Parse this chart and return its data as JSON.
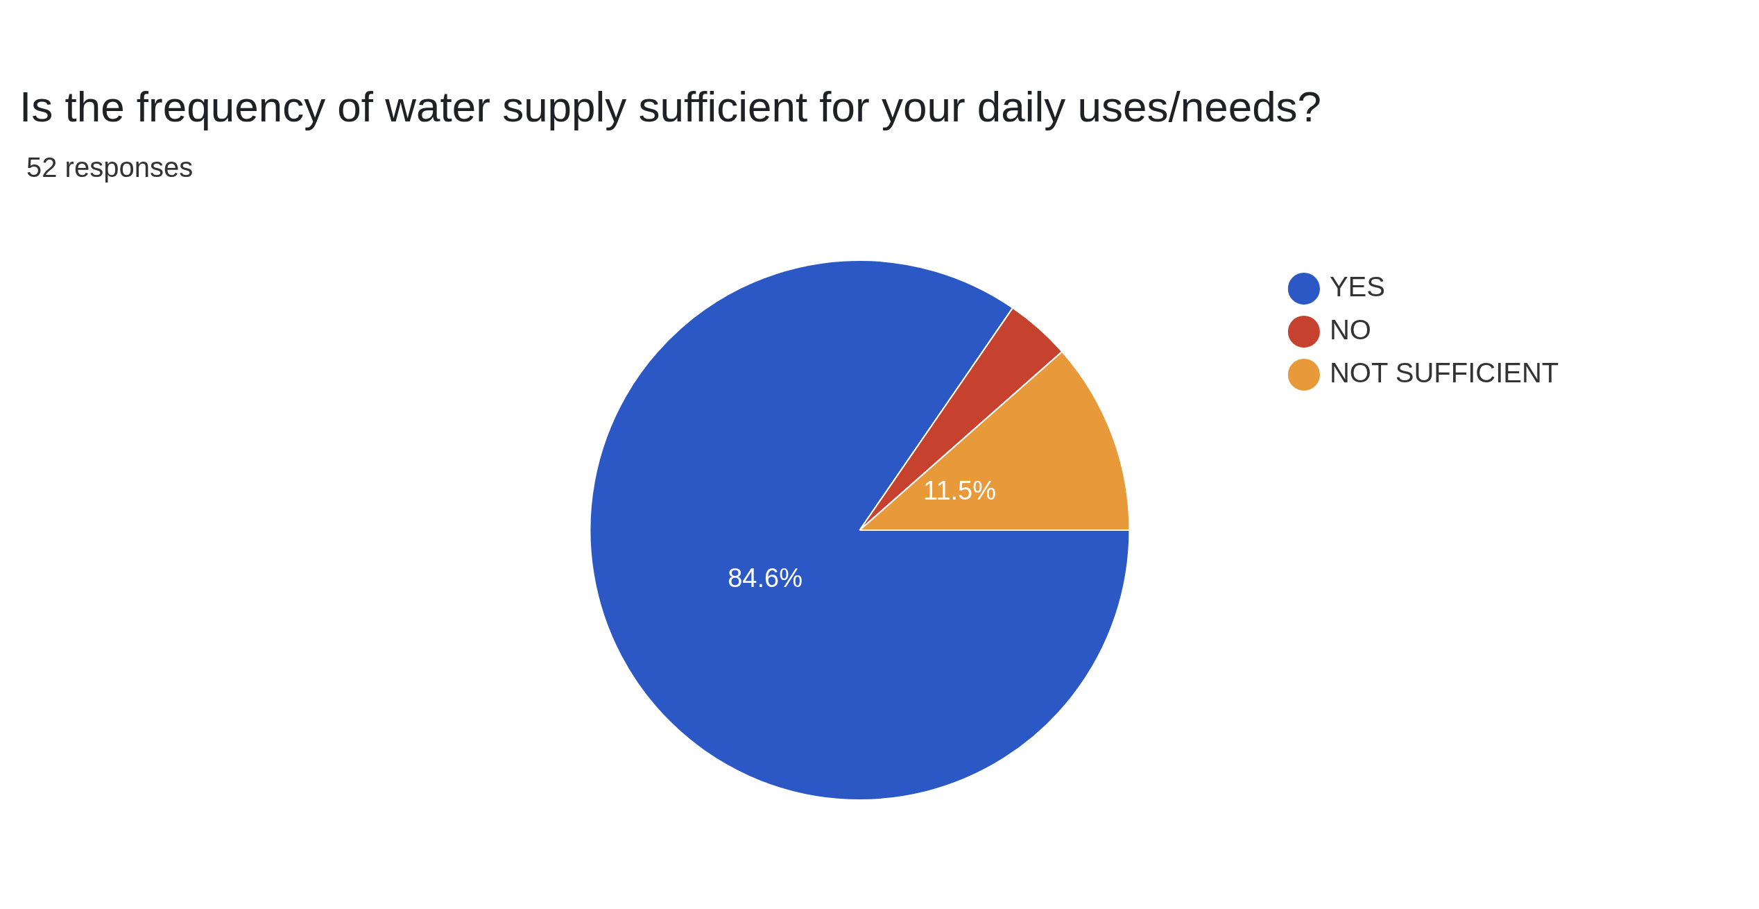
{
  "chart_data": {
    "type": "pie",
    "title": "Is the frequency of water supply sufficient for your daily uses/needs?",
    "subtitle": "52 responses",
    "categories": [
      "YES",
      "NO",
      "NOT SUFFICIENT"
    ],
    "values": [
      84.6,
      3.9,
      11.5
    ],
    "colors": [
      "#2b58c4",
      "#c6422e",
      "#e8993a"
    ],
    "value_labels": [
      "84.6%",
      null,
      "11.5%"
    ],
    "legend": "top right"
  }
}
